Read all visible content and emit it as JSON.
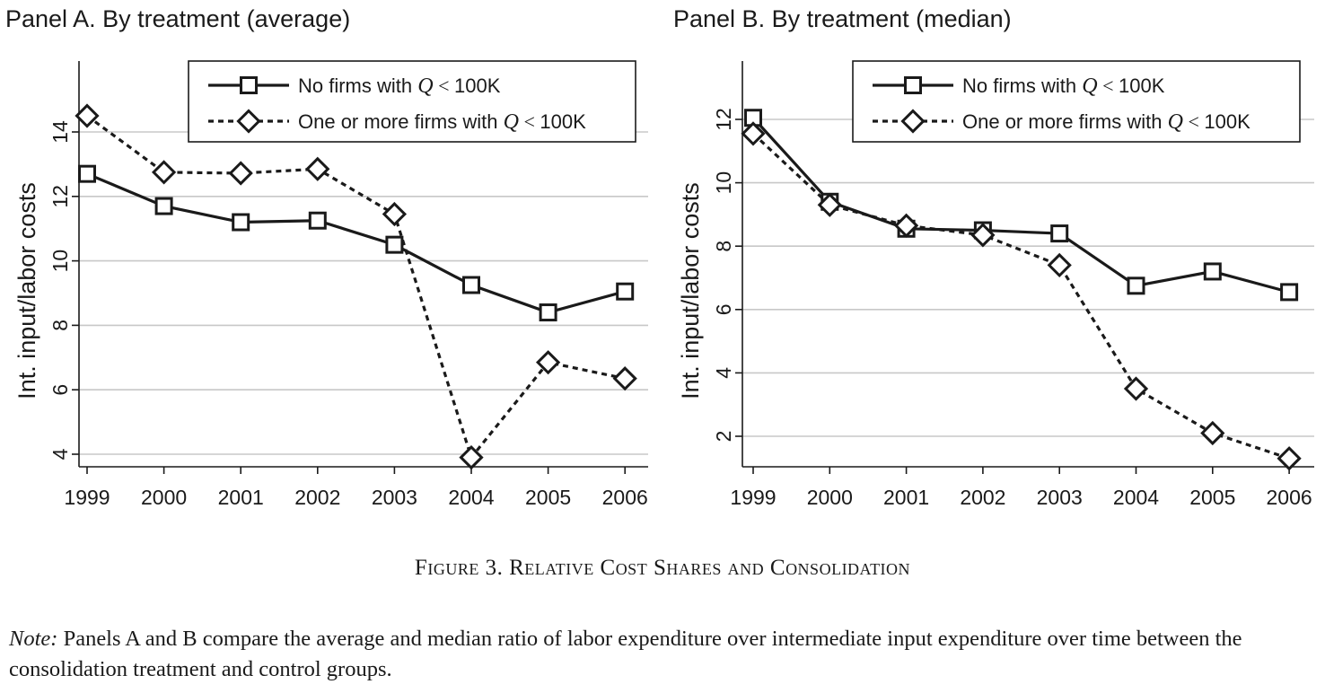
{
  "chart_data": [
    {
      "type": "line",
      "title": "Panel A. By treatment (average)",
      "xlabel": "",
      "ylabel": "Int. input/labor costs",
      "x": [
        1999,
        2000,
        2001,
        2002,
        2003,
        2004,
        2005,
        2006
      ],
      "x_tick_labels": [
        "1999",
        "2000",
        "2001",
        "2002",
        "2003",
        "2004",
        "2005",
        "2006"
      ],
      "y_ticks": [
        4,
        6,
        8,
        10,
        12,
        14
      ],
      "y_tick_labels": [
        "4",
        "6",
        "8",
        "10",
        "12",
        "14"
      ],
      "ylim": [
        3.6,
        16.0
      ],
      "grid": true,
      "legend_position": "top-right",
      "series": [
        {
          "name": "No firms with Q < 100K",
          "marker": "square",
          "line_style": "solid",
          "values": [
            12.7,
            11.7,
            11.2,
            11.25,
            10.5,
            9.25,
            8.4,
            9.05
          ]
        },
        {
          "name": "One or more firms with Q < 100K",
          "marker": "diamond",
          "line_style": "dashed",
          "values": [
            14.5,
            12.75,
            12.72,
            12.85,
            11.45,
            3.9,
            6.85,
            6.35
          ]
        }
      ]
    },
    {
      "type": "line",
      "title": "Panel B. By treatment (median)",
      "xlabel": "",
      "ylabel": "Int. input/labor costs",
      "x": [
        1999,
        2000,
        2001,
        2002,
        2003,
        2004,
        2005,
        2006
      ],
      "x_tick_labels": [
        "1999",
        "2000",
        "2001",
        "2002",
        "2003",
        "2004",
        "2005",
        "2006"
      ],
      "y_ticks": [
        2,
        4,
        6,
        8,
        10,
        12
      ],
      "y_tick_labels": [
        "2",
        "4",
        "6",
        "8",
        "10",
        "12"
      ],
      "ylim": [
        1.0,
        14.0
      ],
      "grid": true,
      "legend_position": "top-right",
      "series": [
        {
          "name": "No firms with Q < 100K",
          "marker": "square",
          "line_style": "solid",
          "values": [
            12.05,
            9.4,
            8.55,
            8.5,
            8.4,
            6.75,
            7.2,
            6.55
          ]
        },
        {
          "name": "One or more firms with Q < 100K",
          "marker": "diamond",
          "line_style": "dashed",
          "values": [
            11.55,
            9.3,
            8.65,
            8.35,
            7.4,
            3.5,
            2.1,
            1.3
          ]
        }
      ]
    }
  ],
  "legend_text": {
    "series_1_prefix": "No firms with ",
    "series_2_prefix": "One or more firms with ",
    "q_symbol": "Q",
    "lt_symbol": "<",
    "threshold": "100K"
  },
  "caption": {
    "first_letter": "F",
    "text_rest": "igure 3. ",
    "r_letter": "R",
    "r_rest": "elative ",
    "c_letter": "C",
    "c_rest": "ost ",
    "s_letter": "S",
    "s_rest": "hares and ",
    "c2_letter": "C",
    "c2_rest": "onsolidation"
  },
  "note": {
    "label": "Note:",
    "text": " Panels A and B compare the average and median ratio of labor expenditure over intermediate input expenditure over time between the consolidation treatment and control groups."
  }
}
